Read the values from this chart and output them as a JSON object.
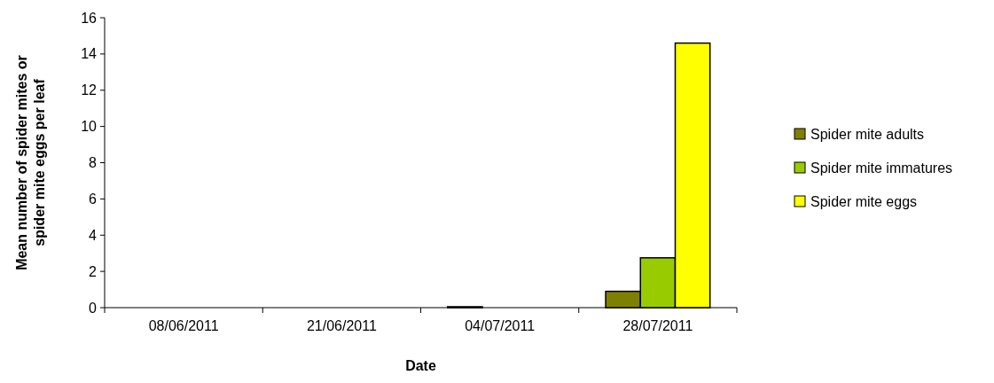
{
  "chart_data": {
    "type": "bar",
    "xlabel": "Date",
    "ylabel": "Mean number of spider mites or spider mite eggs per leaf",
    "categories": [
      "08/06/2011",
      "21/06/2011",
      "04/07/2011",
      "28/07/2011"
    ],
    "series": [
      {
        "name": "Spider mite adults",
        "color": "#808000",
        "values": [
          0,
          0,
          0.05,
          0.9
        ]
      },
      {
        "name": "Spider mite immatures",
        "color": "#99cc00",
        "values": [
          0,
          0,
          0,
          2.75
        ]
      },
      {
        "name": "Spider mite eggs",
        "color": "#ffff00",
        "values": [
          0,
          0,
          0,
          14.6
        ]
      }
    ],
    "ylim": [
      0,
      16
    ],
    "yticks": [
      0,
      2,
      4,
      6,
      8,
      10,
      12,
      14,
      16
    ],
    "grid": false,
    "legend": "right"
  }
}
